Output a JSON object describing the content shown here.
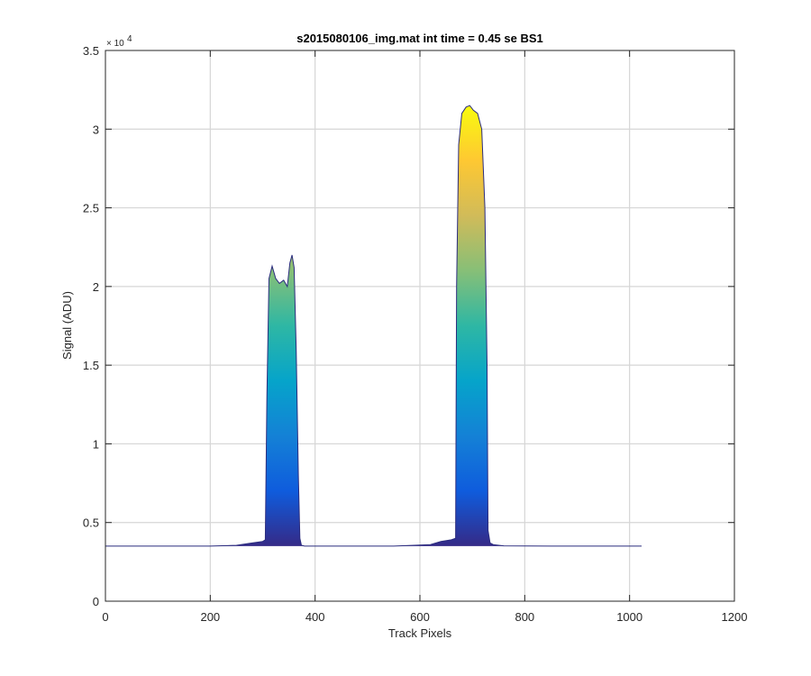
{
  "chart_data": {
    "type": "area",
    "title": "s2015080106_img.mat int time = 0.45 se   BS1",
    "xlabel": "Track Pixels",
    "ylabel": "Signal (ADU)",
    "xlim": [
      0,
      1200
    ],
    "ylim": [
      0,
      35000
    ],
    "xticks": [
      0,
      200,
      400,
      600,
      800,
      1000,
      1200
    ],
    "xtick_labels": [
      "0",
      "200",
      "400",
      "600",
      "800",
      "1000",
      "1200"
    ],
    "yticks": [
      0,
      5000,
      10000,
      15000,
      20000,
      25000,
      30000,
      35000
    ],
    "ytick_labels": [
      "0",
      "0.5",
      "1",
      "1.5",
      "2",
      "2.5",
      "3",
      "3.5"
    ],
    "y_exponent_base": "× 10",
    "y_exponent_power": "4",
    "grid": true,
    "colormap": "parula",
    "colormap_stops": [
      "#352a87",
      "#0f5cdd",
      "#1481d6",
      "#06a4ca",
      "#2eb7a4",
      "#87bf77",
      "#d1bb59",
      "#fec832",
      "#f9fb0e"
    ],
    "baseline": 3500,
    "series": [
      {
        "x": [
          0,
          100,
          200,
          250,
          280,
          300,
          305,
          308,
          312,
          318,
          325,
          332,
          340,
          347,
          352,
          356,
          360,
          364,
          368,
          371,
          374,
          380,
          450,
          550,
          620,
          640,
          660,
          668,
          670,
          674,
          680,
          688,
          695,
          702,
          710,
          718,
          724,
          728,
          730,
          734,
          740,
          760,
          850,
          950,
          1023
        ],
        "values": [
          3500,
          3500,
          3500,
          3550,
          3700,
          3800,
          3900,
          13000,
          20500,
          21300,
          20500,
          20200,
          20400,
          20000,
          21500,
          22000,
          21200,
          16000,
          8000,
          4000,
          3550,
          3500,
          3500,
          3500,
          3600,
          3800,
          3900,
          4000,
          20000,
          29000,
          31000,
          31400,
          31500,
          31200,
          31000,
          30000,
          25000,
          15000,
          4500,
          3700,
          3600,
          3520,
          3500,
          3500,
          3500
        ]
      }
    ]
  }
}
